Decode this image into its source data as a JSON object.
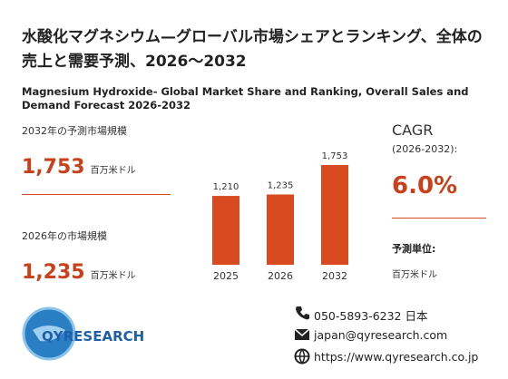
{
  "header": {
    "title": "水酸化マグネシウム—グローバル市場シェアとランキング、全体の売上と需要予測、2026～2032",
    "subtitle": "Magnesium Hydroxide- Global Market Share and Ranking, Overall Sales and Demand Forecast 2026-2032"
  },
  "stats": [
    {
      "label": "2032年の予測市場規模",
      "value": "1,753",
      "unit": "百万米ドル"
    },
    {
      "label": "2026年の市場規模",
      "value": "1,235",
      "unit": "百万米ドル"
    }
  ],
  "chart_data": {
    "type": "bar",
    "categories": [
      "2025",
      "2026",
      "2032"
    ],
    "values": [
      1210,
      1235,
      1753
    ],
    "value_labels": [
      "1,210",
      "1,235",
      "1,753"
    ],
    "color": "#d84a20"
  },
  "cagr": {
    "label": "CAGR",
    "period": "(2026-2032):",
    "value": "6.0%",
    "unit_label": "予測単位:",
    "unit": "百万米ドル"
  },
  "logo": "QYRESEARCH",
  "contacts": {
    "phone": "050-5893-6232 日本",
    "email": "japan@qyresearch.com",
    "web": "https://www.qyresearch.co.jp"
  }
}
